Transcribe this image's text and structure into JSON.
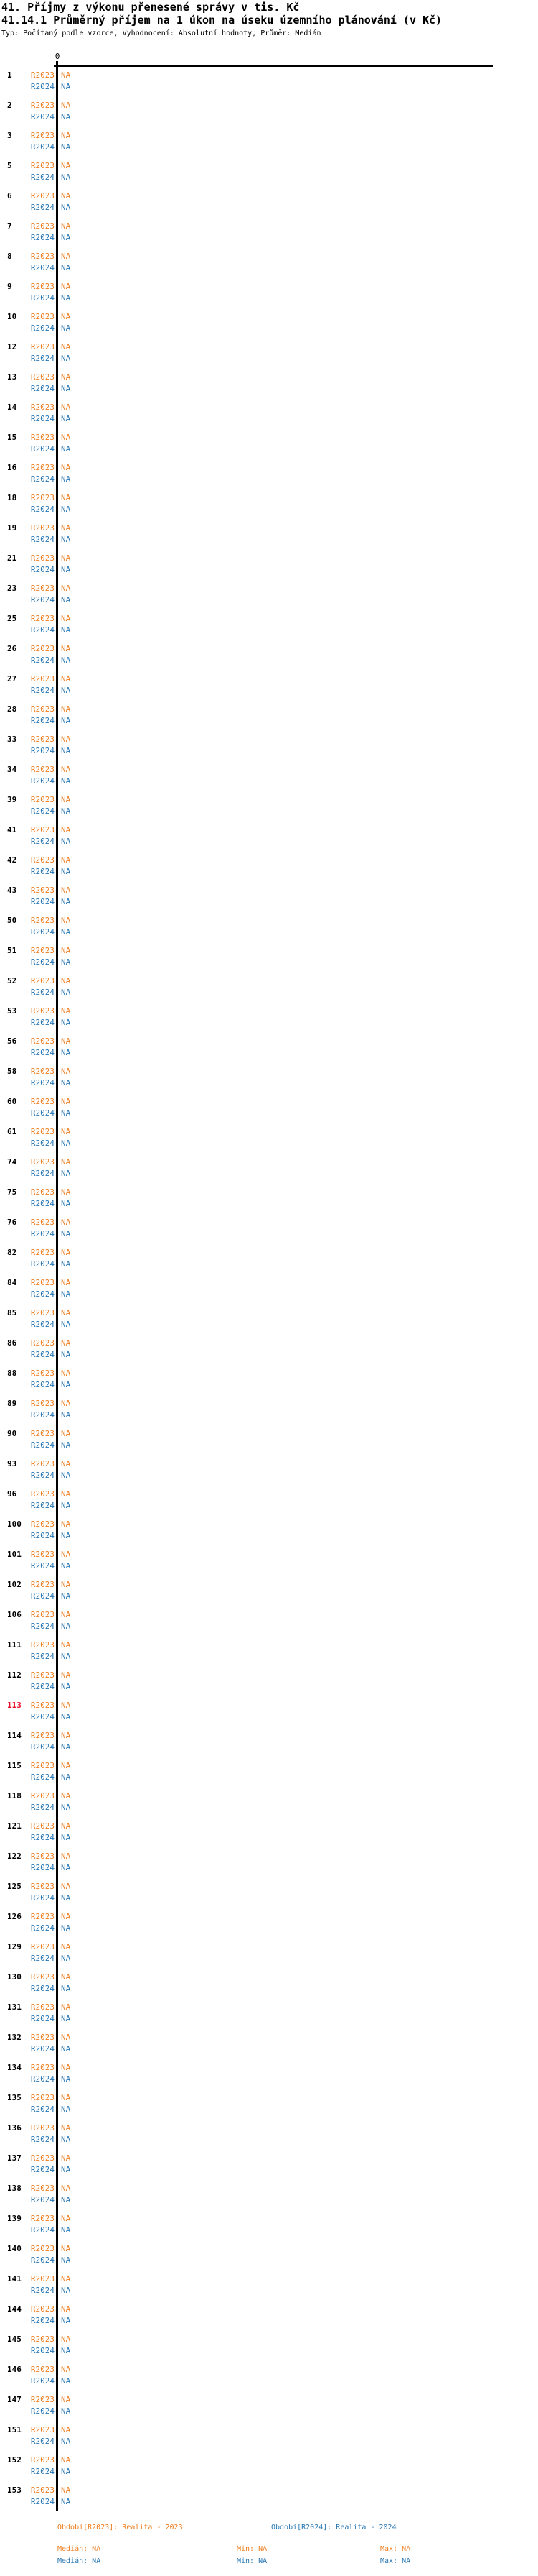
{
  "header": {
    "title": "41. Příjmy z výkonu přenesené správy v tis. Kč",
    "subtitle": "41.14.1 Průměrný příjem na 1 úkon na úseku územního plánování (v Kč)",
    "meta": "Typ: Počítaný podle vzorce, Vyhodnocení: Absolutní hodnoty, Průměr: Medián"
  },
  "colors": {
    "r2023": "#ee7e20",
    "r2024": "#2877b4",
    "highlight": "#e8112d",
    "axis": "#000000"
  },
  "chart_data": {
    "type": "bar",
    "orientation": "horizontal",
    "title": "41. Příjmy z výkonu přenesené správy v tis. Kč",
    "subtitle": "41.14.1 Průměrný příjem na 1 úkon na úseku územního plánování (v Kč)",
    "note": "Typ: Počítaný podle vzorce, Vyhodnocení: Absolutní hodnoty, Průměr: Medián",
    "xlabel": "",
    "ylabel": "",
    "x_axis": {
      "origin_tick": "0"
    },
    "grid": false,
    "legend_position": "bottom",
    "highlighted_category": "113",
    "categories": [
      "1",
      "2",
      "3",
      "5",
      "6",
      "7",
      "8",
      "9",
      "10",
      "12",
      "13",
      "14",
      "15",
      "16",
      "18",
      "19",
      "21",
      "23",
      "25",
      "26",
      "27",
      "28",
      "33",
      "34",
      "39",
      "41",
      "42",
      "43",
      "50",
      "51",
      "52",
      "53",
      "56",
      "58",
      "60",
      "61",
      "74",
      "75",
      "76",
      "82",
      "84",
      "85",
      "86",
      "88",
      "89",
      "90",
      "93",
      "96",
      "100",
      "101",
      "102",
      "106",
      "111",
      "112",
      "113",
      "114",
      "115",
      "118",
      "121",
      "122",
      "125",
      "126",
      "129",
      "130",
      "131",
      "132",
      "134",
      "135",
      "136",
      "137",
      "138",
      "139",
      "140",
      "141",
      "144",
      "145",
      "146",
      "147",
      "151",
      "152",
      "153"
    ],
    "series": [
      {
        "name": "R2023",
        "period_label": "Období[R2023]: Realita - 2023",
        "color": "#ee7e20",
        "median": "NA",
        "min": "NA",
        "max": "NA",
        "values": [
          "NA",
          "NA",
          "NA",
          "NA",
          "NA",
          "NA",
          "NA",
          "NA",
          "NA",
          "NA",
          "NA",
          "NA",
          "NA",
          "NA",
          "NA",
          "NA",
          "NA",
          "NA",
          "NA",
          "NA",
          "NA",
          "NA",
          "NA",
          "NA",
          "NA",
          "NA",
          "NA",
          "NA",
          "NA",
          "NA",
          "NA",
          "NA",
          "NA",
          "NA",
          "NA",
          "NA",
          "NA",
          "NA",
          "NA",
          "NA",
          "NA",
          "NA",
          "NA",
          "NA",
          "NA",
          "NA",
          "NA",
          "NA",
          "NA",
          "NA",
          "NA",
          "NA",
          "NA",
          "NA",
          "NA",
          "NA",
          "NA",
          "NA",
          "NA",
          "NA",
          "NA",
          "NA",
          "NA",
          "NA",
          "NA",
          "NA",
          "NA",
          "NA",
          "NA",
          "NA",
          "NA",
          "NA",
          "NA",
          "NA",
          "NA",
          "NA",
          "NA",
          "NA",
          "NA",
          "NA",
          "NA"
        ]
      },
      {
        "name": "R2024",
        "period_label": "Období[R2024]: Realita - 2024",
        "color": "#2877b4",
        "median": "NA",
        "min": "NA",
        "max": "NA",
        "values": [
          "NA",
          "NA",
          "NA",
          "NA",
          "NA",
          "NA",
          "NA",
          "NA",
          "NA",
          "NA",
          "NA",
          "NA",
          "NA",
          "NA",
          "NA",
          "NA",
          "NA",
          "NA",
          "NA",
          "NA",
          "NA",
          "NA",
          "NA",
          "NA",
          "NA",
          "NA",
          "NA",
          "NA",
          "NA",
          "NA",
          "NA",
          "NA",
          "NA",
          "NA",
          "NA",
          "NA",
          "NA",
          "NA",
          "NA",
          "NA",
          "NA",
          "NA",
          "NA",
          "NA",
          "NA",
          "NA",
          "NA",
          "NA",
          "NA",
          "NA",
          "NA",
          "NA",
          "NA",
          "NA",
          "NA",
          "NA",
          "NA",
          "NA",
          "NA",
          "NA",
          "NA",
          "NA",
          "NA",
          "NA",
          "NA",
          "NA",
          "NA",
          "NA",
          "NA",
          "NA",
          "NA",
          "NA",
          "NA",
          "NA",
          "NA",
          "NA",
          "NA",
          "NA",
          "NA",
          "NA",
          "NA"
        ]
      }
    ]
  },
  "legend": {
    "period_r2023": "Období[R2023]: Realita - 2023",
    "period_r2024": "Období[R2024]: Realita - 2024",
    "r2023": {
      "median": "Medián: NA",
      "min": "Min: NA",
      "max": "Max: NA"
    },
    "r2024": {
      "median": "Medián: NA",
      "min": "Min: NA",
      "max": "Max: NA"
    }
  }
}
